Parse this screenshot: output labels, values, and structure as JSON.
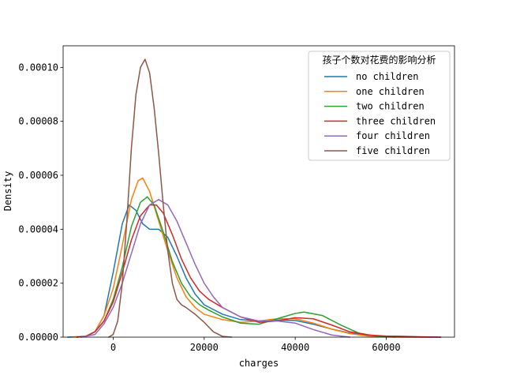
{
  "chart_data": {
    "type": "line",
    "title": "",
    "xlabel": "charges",
    "ylabel": "Density",
    "xlim": [
      -11000,
      75000
    ],
    "ylim": [
      0,
      0.000108
    ],
    "xticks": [
      0,
      20000,
      40000,
      60000
    ],
    "xtick_labels": [
      "0",
      "20000",
      "40000",
      "60000"
    ],
    "yticks": [
      0,
      2e-05,
      4e-05,
      6e-05,
      8e-05,
      0.0001
    ],
    "ytick_labels": [
      "0.00000",
      "0.00002",
      "0.00004",
      "0.00006",
      "0.00008",
      "0.00010"
    ],
    "grid": false,
    "legend": {
      "title": "孩子个数对花费的影响分析",
      "placement": "top-right"
    },
    "series": [
      {
        "name": "no children",
        "color": "#1f77b4",
        "x": [
          -10000,
          -6000,
          -4000,
          -2000,
          0,
          2000,
          3500,
          5000,
          6500,
          8000,
          10000,
          12000,
          14000,
          16000,
          18000,
          20000,
          24000,
          28000,
          32000,
          36000,
          40000,
          44000,
          48000,
          52000,
          56000,
          60000,
          64000,
          68000,
          72000
        ],
        "y": [
          0.0,
          3e-07,
          2e-06,
          8e-06,
          2.4e-05,
          4.2e-05,
          4.9e-05,
          4.7e-05,
          4.2e-05,
          4e-05,
          4e-05,
          3.7e-05,
          3e-05,
          2.2e-05,
          1.6e-05,
          1.2e-05,
          8.5e-06,
          6.5e-06,
          6e-06,
          6.3e-06,
          6.2e-06,
          4.8e-06,
          3e-06,
          1.5e-06,
          6e-07,
          2e-07,
          5e-08,
          0.0,
          0.0
        ]
      },
      {
        "name": "one children",
        "color": "#ff7f0e",
        "x": [
          -9000,
          -6000,
          -4000,
          -2000,
          0,
          2000,
          4000,
          5500,
          6500,
          8000,
          10000,
          12000,
          14000,
          16000,
          18000,
          20000,
          24000,
          28000,
          32000,
          36000,
          40000,
          44000,
          48000,
          52000,
          56000,
          60000,
          64000
        ],
        "y": [
          0.0,
          4e-07,
          2e-06,
          8e-06,
          1.8e-05,
          3.4e-05,
          5.1e-05,
          5.8e-05,
          5.9e-05,
          5.4e-05,
          4.3e-05,
          3.2e-05,
          2.2e-05,
          1.5e-05,
          1.1e-05,
          8.5e-06,
          6.5e-06,
          5.5e-06,
          6e-06,
          6.8e-06,
          6.8e-06,
          5.2e-06,
          3e-06,
          1.3e-06,
          4e-07,
          1e-07,
          0.0
        ]
      },
      {
        "name": "two children",
        "color": "#2ca02c",
        "x": [
          -8000,
          -6000,
          -4000,
          -2000,
          0,
          2000,
          4000,
          6000,
          7500,
          9000,
          11000,
          13000,
          15000,
          17000,
          19000,
          21000,
          24000,
          28000,
          32000,
          36000,
          40000,
          42000,
          46000,
          50000,
          54000,
          58000,
          62000
        ],
        "y": [
          0.0,
          3e-07,
          2e-06,
          6e-06,
          1.4e-05,
          2.6e-05,
          4.1e-05,
          5e-05,
          5.2e-05,
          4.9e-05,
          3.9e-05,
          2.8e-05,
          2e-05,
          1.5e-05,
          1.2e-05,
          1e-05,
          7.5e-06,
          5.2e-06,
          4.8e-06,
          6.8e-06,
          8.8e-06,
          9.3e-06,
          8e-06,
          4.5e-06,
          1.5e-06,
          3e-07,
          0.0
        ]
      },
      {
        "name": "three children",
        "color": "#d62728",
        "x": [
          -8000,
          -6000,
          -4000,
          -2000,
          0,
          2000,
          4000,
          6000,
          8000,
          9500,
          11000,
          13000,
          15000,
          17000,
          19000,
          21000,
          24000,
          28000,
          32000,
          36000,
          40000,
          44000,
          48000,
          52000,
          56000,
          60000,
          64000,
          68000,
          72000
        ],
        "y": [
          0.0,
          3e-07,
          2e-06,
          6e-06,
          1.3e-05,
          2.4e-05,
          3.6e-05,
          4.5e-05,
          4.9e-05,
          4.9e-05,
          4.6e-05,
          3.8e-05,
          2.9e-05,
          2.2e-05,
          1.7e-05,
          1.4e-05,
          1.1e-05,
          7.5e-06,
          5.5e-06,
          6e-06,
          7.2e-06,
          6.8e-06,
          4.5e-06,
          2e-06,
          8e-07,
          4e-07,
          3e-07,
          1e-07,
          0.0
        ]
      },
      {
        "name": "four children",
        "color": "#9467bd",
        "x": [
          -7000,
          -4000,
          -2000,
          0,
          2000,
          4000,
          6000,
          8000,
          10000,
          12000,
          14000,
          16000,
          18000,
          20000,
          22000,
          24000,
          28000,
          32000,
          36000,
          40000,
          44000,
          48000,
          52000
        ],
        "y": [
          0.0,
          1e-06,
          5e-06,
          1.1e-05,
          2e-05,
          3.1e-05,
          4.2e-05,
          4.9e-05,
          5.1e-05,
          4.9e-05,
          4.3e-05,
          3.5e-05,
          2.7e-05,
          2e-05,
          1.5e-05,
          1.1e-05,
          7.5e-06,
          6e-06,
          6e-06,
          5.2e-06,
          2.8e-06,
          8e-07,
          0.0
        ]
      },
      {
        "name": "five children",
        "color": "#8c564b",
        "x": [
          -1000,
          0,
          1000,
          2000,
          3000,
          4000,
          5000,
          6000,
          7000,
          8000,
          9000,
          10000,
          11000,
          12000,
          13000,
          14000,
          15000,
          16000,
          18000,
          20000,
          22000,
          24000,
          26000
        ],
        "y": [
          0.0,
          1e-06,
          6e-06,
          2e-05,
          4.3e-05,
          7e-05,
          9e-05,
          0.0001,
          0.000103,
          9.8e-05,
          8.5e-05,
          6.8e-05,
          4.9e-05,
          3.2e-05,
          2e-05,
          1.4e-05,
          1.2e-05,
          1.1e-05,
          8.5e-06,
          5.5e-06,
          2e-06,
          3e-07,
          0.0
        ]
      }
    ]
  }
}
